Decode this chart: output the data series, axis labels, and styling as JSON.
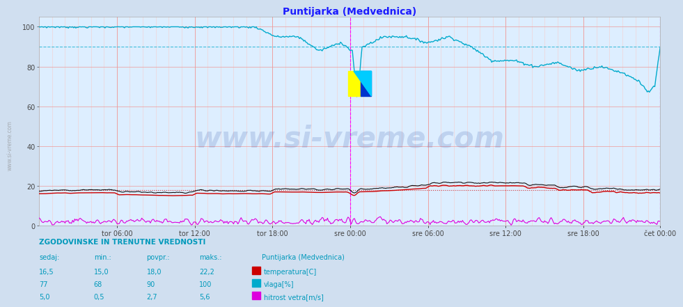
{
  "title": "Puntijarka (Medvednica)",
  "title_color": "#1a1aff",
  "bg_color": "#d0dff0",
  "plot_bg_color": "#ddeeff",
  "grid_major_color": "#ee9999",
  "grid_minor_color": "#f5cccc",
  "ylim": [
    0,
    105
  ],
  "yticks": [
    0,
    20,
    40,
    60,
    80,
    100
  ],
  "xlabel_ticks": [
    "tor 06:00",
    "tor 12:00",
    "tor 18:00",
    "sre 00:00",
    "sre 06:00",
    "sre 12:00",
    "sre 18:00",
    "čet 00:00"
  ],
  "num_points": 576,
  "temperature_color": "#cc0000",
  "humidity_color": "#00aacc",
  "wind_color": "#dd00dd",
  "vline_color": "#ff00ff",
  "dashed_ref_hum": 90,
  "dashed_ref_temp": 18,
  "watermark": "www.si-vreme.com",
  "watermark_color": "#3355aa",
  "watermark_alpha": 0.18,
  "footer_header": "ZGODOVINSKE IN TRENUTNE VREDNOSTI",
  "footer_col1": "sedaj:",
  "footer_col2": "min.:",
  "footer_col3": "povpr.:",
  "footer_col4": "maks.:",
  "footer_col5": "Puntijarka (Medvednica)",
  "temp_sedaj": "16,5",
  "temp_min": "15,0",
  "temp_povpr": "18,0",
  "temp_maks": "22,2",
  "temp_label": "temperatura[C]",
  "hum_sedaj": "77",
  "hum_min": "68",
  "hum_povpr": "90",
  "hum_maks": "100",
  "hum_label": "vlaga[%]",
  "wind_sedaj": "5,0",
  "wind_min": "0,5",
  "wind_povpr": "2,7",
  "wind_maks": "5,6",
  "wind_label": "hitrost vetra[m/s]",
  "text_color": "#0099bb"
}
